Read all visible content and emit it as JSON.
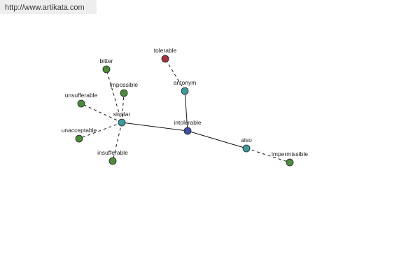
{
  "watermark": "http://www.artikata.com",
  "colors": {
    "synonym": "#4e8a3c",
    "relation": "#3f9a9c",
    "center": "#414fa3",
    "antonym": "#a23542"
  },
  "nodes": [
    {
      "id": "intolerable",
      "label": "intolerable",
      "kind": "center"
    },
    {
      "id": "similar",
      "label": "similar",
      "kind": "relation"
    },
    {
      "id": "antonym",
      "label": "antonym",
      "kind": "relation"
    },
    {
      "id": "also",
      "label": "also",
      "kind": "relation"
    },
    {
      "id": "bitter",
      "label": "bitter",
      "kind": "synonym"
    },
    {
      "id": "impossible",
      "label": "impossible",
      "kind": "synonym"
    },
    {
      "id": "unsufferable",
      "label": "unsufferable",
      "kind": "synonym"
    },
    {
      "id": "unacceptable",
      "label": "unacceptable",
      "kind": "synonym"
    },
    {
      "id": "insufferable",
      "label": "insufferable",
      "kind": "synonym"
    },
    {
      "id": "tolerable",
      "label": "tolerable",
      "kind": "antonym"
    },
    {
      "id": "impermissible",
      "label": "impermissible",
      "kind": "synonym"
    }
  ],
  "edges": [
    {
      "from": "intolerable",
      "to": "similar",
      "style": "solid"
    },
    {
      "from": "intolerable",
      "to": "antonym",
      "style": "solid"
    },
    {
      "from": "intolerable",
      "to": "also",
      "style": "solid"
    },
    {
      "from": "similar",
      "to": "bitter",
      "style": "dashed"
    },
    {
      "from": "similar",
      "to": "impossible",
      "style": "dashed"
    },
    {
      "from": "similar",
      "to": "unsufferable",
      "style": "dashed"
    },
    {
      "from": "similar",
      "to": "unacceptable",
      "style": "dashed"
    },
    {
      "from": "similar",
      "to": "insufferable",
      "style": "dashed"
    },
    {
      "from": "antonym",
      "to": "tolerable",
      "style": "dashed"
    },
    {
      "from": "also",
      "to": "impermissible",
      "style": "dashed"
    }
  ]
}
